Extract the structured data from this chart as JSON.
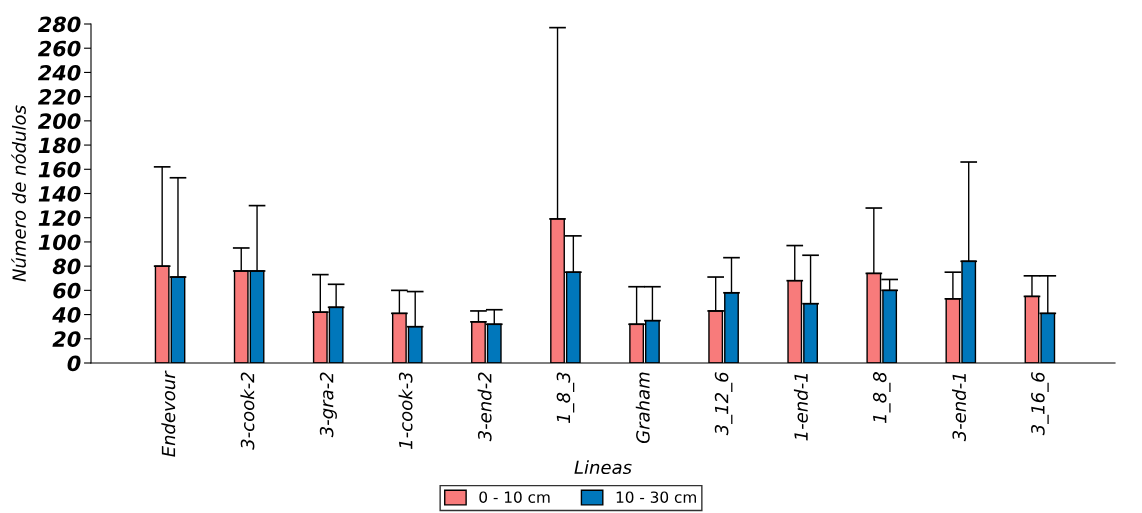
{
  "chart_data": {
    "type": "bar",
    "xlabel": "Lineas",
    "ylabel": "Número de nódulos",
    "categories": [
      "Endevour",
      "3-cook-2",
      "3-gra-2",
      "1-cook-3",
      "3-end-2",
      "1_8_3",
      "Graham",
      "3_12_6",
      "1-end-1",
      "1_8_8",
      "3-end-1",
      "3_16_6"
    ],
    "series": [
      {
        "name": "0 - 10 cm",
        "color": "#f87b7b",
        "values": [
          80,
          76,
          42,
          41,
          34,
          119,
          32,
          43,
          68,
          74,
          53,
          55
        ],
        "errors": [
          [
            80,
            162
          ],
          [
            76,
            95
          ],
          [
            42,
            73
          ],
          [
            41,
            60
          ],
          [
            34,
            43
          ],
          [
            119,
            277
          ],
          [
            32,
            63
          ],
          [
            43,
            71
          ],
          [
            68,
            97
          ],
          [
            74,
            128
          ],
          [
            53,
            75
          ],
          [
            55,
            72
          ]
        ]
      },
      {
        "name": "10 - 30 cm",
        "color": "#0077bb",
        "values": [
          71,
          76,
          46,
          30,
          32,
          75,
          35,
          58,
          49,
          60,
          84,
          41
        ],
        "errors": [
          [
            71,
            153
          ],
          [
            76,
            130
          ],
          [
            46,
            65
          ],
          [
            30,
            59
          ],
          [
            32,
            44
          ],
          [
            75,
            105
          ],
          [
            35,
            63
          ],
          [
            58,
            87
          ],
          [
            49,
            89
          ],
          [
            60,
            69
          ],
          [
            84,
            166
          ],
          [
            41,
            72
          ]
        ]
      }
    ],
    "ylim": [
      0,
      280
    ],
    "yticks": [
      0,
      20,
      40,
      60,
      80,
      100,
      120,
      140,
      160,
      180,
      200,
      220,
      240,
      260,
      280
    ],
    "grid": false,
    "legend": "bottom"
  }
}
